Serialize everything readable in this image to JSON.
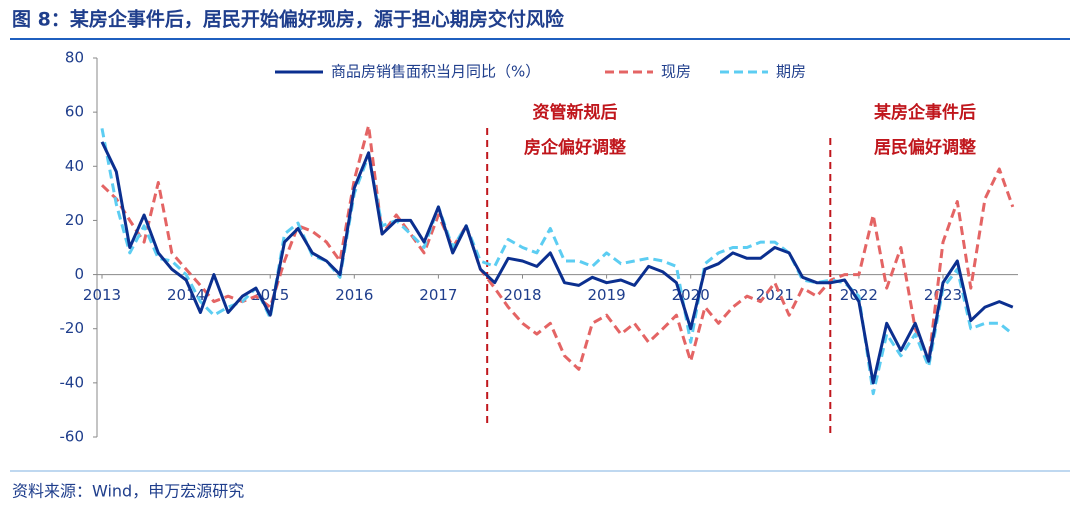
{
  "header": {
    "title": "图 8：某房企事件后，居民开始偏好现房，源于担心期房交付风险"
  },
  "chart_data": {
    "type": "line",
    "x": [
      2013,
      2013.17,
      2013.33,
      2013.5,
      2013.67,
      2013.83,
      2014,
      2014.17,
      2014.33,
      2014.5,
      2014.67,
      2014.83,
      2015,
      2015.17,
      2015.33,
      2015.5,
      2015.67,
      2015.83,
      2016,
      2016.17,
      2016.33,
      2016.5,
      2016.67,
      2016.83,
      2017,
      2017.17,
      2017.33,
      2017.5,
      2017.67,
      2017.83,
      2018,
      2018.17,
      2018.33,
      2018.5,
      2018.67,
      2018.83,
      2019,
      2019.17,
      2019.33,
      2019.5,
      2019.67,
      2019.83,
      2020,
      2020.17,
      2020.33,
      2020.5,
      2020.67,
      2020.83,
      2021,
      2021.17,
      2021.33,
      2021.5,
      2021.67,
      2021.83,
      2022,
      2022.17,
      2022.33,
      2022.5,
      2022.67,
      2022.83,
      2023,
      2023.17,
      2023.33,
      2023.5,
      2023.67,
      2023.83
    ],
    "series": [
      {
        "name": "商品房销售面积当月同比（%）",
        "color": "#0b2f8f",
        "dash": false,
        "values": [
          49,
          38,
          10,
          22,
          8,
          2,
          -2,
          -14,
          0,
          -14,
          -8,
          -5,
          -15,
          12,
          17,
          8,
          5,
          0,
          32,
          45,
          15,
          20,
          20,
          12,
          25,
          8,
          18,
          2,
          -3,
          6,
          5,
          3,
          8,
          -3,
          -4,
          -1,
          -3,
          -2,
          -4,
          3,
          1,
          -3,
          -20,
          2,
          4,
          8,
          6,
          6,
          10,
          8,
          -1,
          -3,
          -3,
          -2,
          -10,
          -40,
          -18,
          -28,
          -18,
          -32,
          -3,
          5,
          -17,
          -12,
          -10,
          -12
        ]
      },
      {
        "name": "现房",
        "color": "#e46464",
        "dash": true,
        "values": [
          33,
          28,
          20,
          12,
          34,
          8,
          2,
          -4,
          -10,
          -8,
          -10,
          -8,
          -12,
          5,
          18,
          16,
          12,
          5,
          35,
          55,
          15,
          22,
          15,
          8,
          22,
          10,
          18,
          2,
          -5,
          -12,
          -18,
          -22,
          -18,
          -30,
          -35,
          -18,
          -15,
          -22,
          -18,
          -25,
          -20,
          -15,
          -32,
          -12,
          -18,
          -12,
          -8,
          -10,
          -3,
          -15,
          -5,
          -8,
          -2,
          0,
          0,
          22,
          -5,
          10,
          -20,
          -32,
          12,
          27,
          -5,
          28,
          39,
          25
        ]
      },
      {
        "name": "期房",
        "color": "#5ccdf2",
        "dash": true,
        "values": [
          54,
          26,
          8,
          18,
          6,
          5,
          0,
          -10,
          -15,
          -12,
          -10,
          -5,
          -16,
          15,
          19,
          7,
          5,
          -1,
          30,
          44,
          18,
          20,
          15,
          10,
          25,
          10,
          18,
          5,
          3,
          13,
          10,
          8,
          17,
          5,
          5,
          3,
          8,
          4,
          5,
          6,
          5,
          3,
          -25,
          4,
          8,
          10,
          10,
          12,
          12,
          8,
          -2,
          -3,
          -2,
          -3,
          -8,
          -44,
          -22,
          -30,
          -22,
          -34,
          -5,
          2,
          -20,
          -18,
          -18,
          -22
        ]
      }
    ],
    "xlim": [
      2013,
      2024.1
    ],
    "xticks": [
      2013,
      2014,
      2015,
      2016,
      2017,
      2018,
      2019,
      2020,
      2021,
      2022,
      2023
    ],
    "ylim": [
      -60,
      80
    ],
    "yticks": [
      80,
      60,
      40,
      20,
      0,
      -20,
      -40,
      -60
    ],
    "vlines": [
      2017.58,
      2021.66
    ],
    "annotations": [
      [
        "资管新规后",
        "房企偏好调整"
      ],
      [
        "某房企事件后",
        "居民偏好调整"
      ]
    ]
  },
  "footer": {
    "source": "资料来源：Wind，申万宏源研究"
  }
}
